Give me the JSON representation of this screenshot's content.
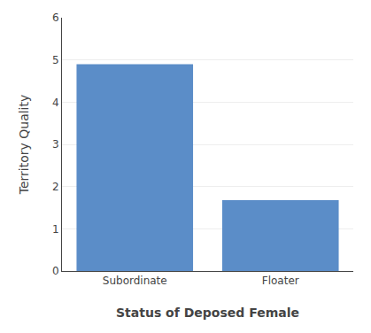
{
  "chart_data": {
    "type": "bar",
    "categories": [
      "Subordinate",
      "Floater"
    ],
    "values": [
      4.9,
      1.68
    ],
    "color": "#5b8dc8",
    "xlabel": "Status of Deposed Female",
    "ylabel": "Territory Quality",
    "ylim": [
      0,
      6
    ],
    "yticks": [
      0,
      1,
      2,
      3,
      4,
      5,
      6
    ],
    "grid": true
  }
}
